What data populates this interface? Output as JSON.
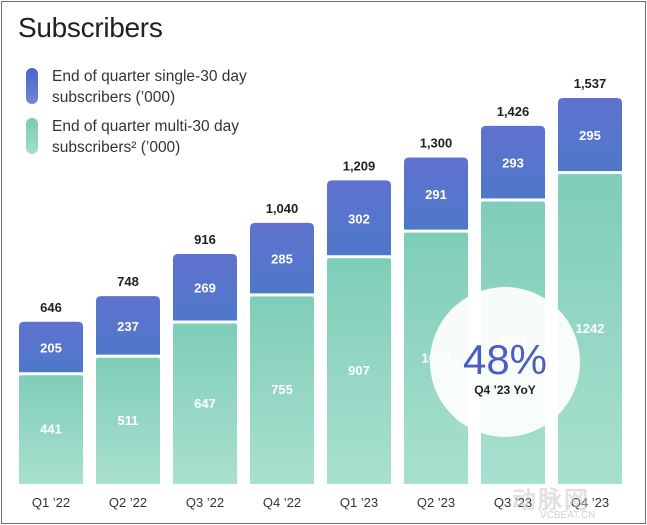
{
  "header": {
    "title": "Subscribers"
  },
  "legend": {
    "single": "End of quarter single-30 day subscribers (’000)",
    "multi": "End of quarter multi-30 day subscribers² (’000)"
  },
  "badge": {
    "value": "48%",
    "label": "Q4 ’23 YoY"
  },
  "watermark": {
    "text": "动脉网",
    "sub": "VCBEAT.CN"
  },
  "colors": {
    "single": "#5a73cc",
    "multi": "#86d1bb"
  },
  "chart_data": {
    "type": "bar",
    "stacked": true,
    "title": "Subscribers",
    "categories": [
      "Q1 ’22",
      "Q2 ’22",
      "Q3 ’22",
      "Q4 ’22",
      "Q1 ’23",
      "Q2 ’23",
      "Q3 ’23",
      "Q4 ’23"
    ],
    "series": [
      {
        "name": "End of quarter multi-30 day subscribers² (’000)",
        "values": [
          441,
          511,
          647,
          755,
          907,
          1009,
          1133,
          1242
        ]
      },
      {
        "name": "End of quarter single-30 day subscribers (’000)",
        "values": [
          205,
          237,
          269,
          285,
          302,
          291,
          293,
          295
        ]
      }
    ],
    "totals": [
      646,
      748,
      916,
      1040,
      1209,
      1300,
      1426,
      1537
    ],
    "totalLabels": [
      "646",
      "748",
      "916",
      "1,040",
      "1,209",
      "1,300",
      "1,426",
      "1,537"
    ],
    "ylim": [
      0,
      1537
    ],
    "grid": false,
    "legend_position": "top-left"
  }
}
